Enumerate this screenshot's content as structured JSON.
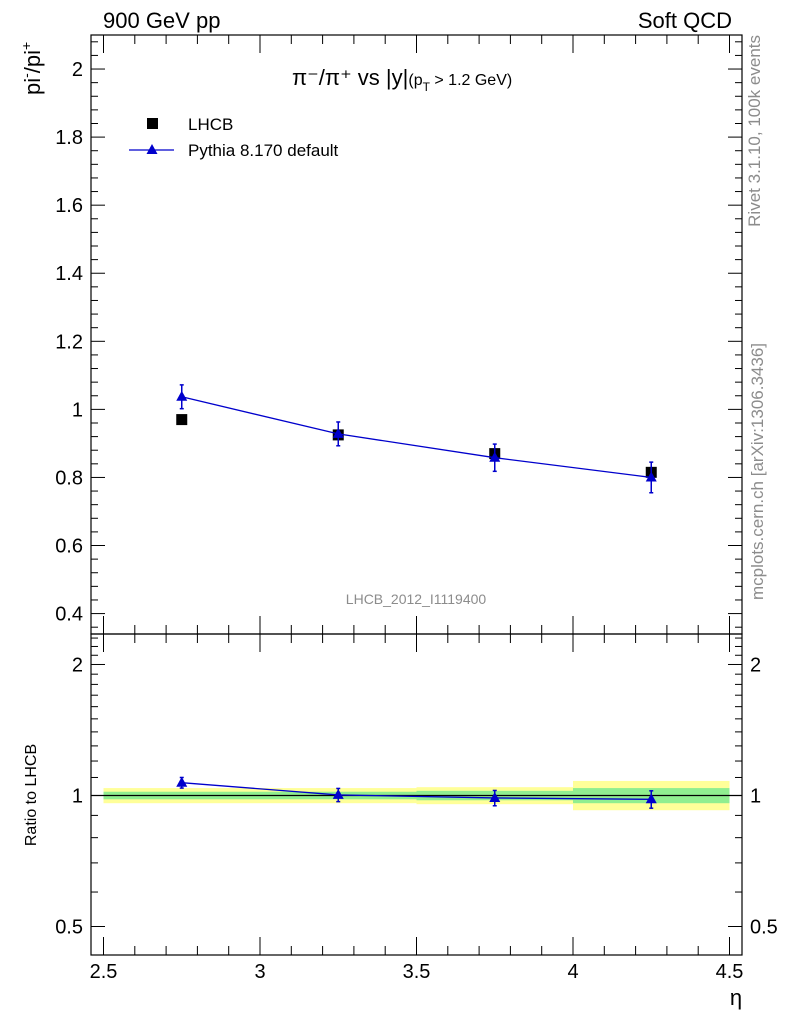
{
  "header": {
    "left": "900 GeV pp",
    "right": "Soft QCD"
  },
  "side_text": {
    "rivet": "Rivet 3.1.10,  100k events",
    "mcplots": "mcplots.cern.ch [arXiv:1306.3436]"
  },
  "chart_data": [
    {
      "type": "scatter",
      "title_parts": {
        "main": "π⁻/π⁺ vs |y|",
        "cut_open": "(p",
        "cut_sub": "T",
        "cut_close": " > 1.2 GeV)"
      },
      "ylabel_parts": {
        "a": "pi",
        "sup1": "-",
        "b": "/pi",
        "sup2": "+"
      },
      "xlabel": "η",
      "watermark": "LHCB_2012_I1119400",
      "xlim": [
        2.5,
        4.5
      ],
      "ylim": [
        0.34,
        2.1
      ],
      "x_ticks": [
        "2.5",
        "3",
        "3.5",
        "4",
        "4.5"
      ],
      "y_ticks": [
        "0.4",
        "0.6",
        "0.8",
        "1",
        "1.2",
        "1.4",
        "1.6",
        "1.8",
        "2"
      ],
      "legend_position": "top-left",
      "legend": [
        "LHCB",
        "Pythia 8.170 default"
      ],
      "series": [
        {
          "name": "LHCB",
          "marker": "square",
          "color": "#000000",
          "x": [
            2.75,
            3.25,
            3.75,
            4.25
          ],
          "y": [
            0.97,
            0.925,
            0.87,
            0.815
          ]
        },
        {
          "name": "Pythia 8.170 default",
          "marker": "triangle",
          "color": "#0000cc",
          "x": [
            2.75,
            3.25,
            3.75,
            4.25
          ],
          "y": [
            1.037,
            0.928,
            0.858,
            0.8
          ],
          "yerr": [
            0.035,
            0.035,
            0.04,
            0.045
          ]
        }
      ]
    },
    {
      "type": "scatter",
      "ylabel": "Ratio to LHCB",
      "xlim": [
        2.5,
        4.5
      ],
      "ylim": [
        0.43,
        2.35
      ],
      "y_scale": "log",
      "y_ticks": [
        "0.5",
        "1",
        "2"
      ],
      "reference_line": 1,
      "bands": [
        {
          "x": [
            2.5,
            3.0
          ],
          "inner": [
            0.98,
            1.02
          ],
          "outer": [
            0.96,
            1.04
          ]
        },
        {
          "x": [
            3.0,
            3.5
          ],
          "inner": [
            0.98,
            1.02
          ],
          "outer": [
            0.96,
            1.04
          ]
        },
        {
          "x": [
            3.5,
            4.0
          ],
          "inner": [
            0.975,
            1.025
          ],
          "outer": [
            0.955,
            1.045
          ]
        },
        {
          "x": [
            4.0,
            4.5
          ],
          "inner": [
            0.96,
            1.04
          ],
          "outer": [
            0.925,
            1.08
          ]
        }
      ],
      "band_colors": {
        "inner": "#90ee90",
        "outer": "#ffff99"
      },
      "series": [
        {
          "name": "Pythia 8.170 default",
          "color": "#0000cc",
          "x": [
            2.75,
            3.25,
            3.75,
            4.25
          ],
          "y": [
            1.07,
            1.003,
            0.987,
            0.98
          ],
          "yerr": [
            0.03,
            0.035,
            0.04,
            0.045
          ]
        }
      ]
    }
  ]
}
